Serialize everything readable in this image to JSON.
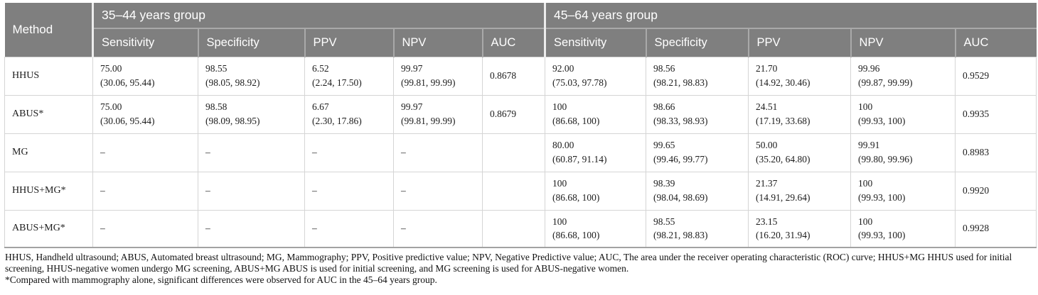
{
  "table": {
    "method_header": "Method",
    "groups": [
      {
        "label": "35–44 years group",
        "columns": [
          "Sensitivity",
          "Specificity",
          "PPV",
          "NPV",
          "AUC"
        ]
      },
      {
        "label": "45–64 years group",
        "columns": [
          "Sensitivity",
          "Specificity",
          "PPV",
          "NPV",
          "AUC"
        ]
      }
    ],
    "rows": [
      {
        "method": "HHUS",
        "cells": [
          [
            "75.00",
            "(30.06, 95.44)"
          ],
          [
            "98.55",
            "(98.05, 98.92)"
          ],
          [
            "6.52",
            "(2.24, 17.50)"
          ],
          [
            "99.97",
            "(99.81, 99.99)"
          ],
          [
            "0.8678",
            ""
          ],
          [
            "92.00",
            "(75.03, 97.78)"
          ],
          [
            "98.56",
            "(98.21, 98.83)"
          ],
          [
            "21.70",
            "(14.92, 30.46)"
          ],
          [
            "99.96",
            "(99.87, 99.99)"
          ],
          [
            "0.9529",
            ""
          ]
        ]
      },
      {
        "method": "ABUS*",
        "cells": [
          [
            "75.00",
            "(30.06, 95.44)"
          ],
          [
            "98.58",
            "(98.09, 98.95)"
          ],
          [
            "6.67",
            "(2.30, 17.86)"
          ],
          [
            "99.97",
            "(99.81, 99.99)"
          ],
          [
            "0.8679",
            ""
          ],
          [
            "100",
            "(86.68, 100)"
          ],
          [
            "98.66",
            "(98.33, 98.93)"
          ],
          [
            "24.51",
            "(17.19, 33.68)"
          ],
          [
            "100",
            "(99.93, 100)"
          ],
          [
            "0.9935",
            ""
          ]
        ]
      },
      {
        "method": "MG",
        "cells": [
          [
            "–",
            ""
          ],
          [
            "–",
            ""
          ],
          [
            "–",
            ""
          ],
          [
            "–",
            ""
          ],
          [
            "",
            ""
          ],
          [
            "80.00",
            "(60.87, 91.14)"
          ],
          [
            "99.65",
            "(99.46, 99.77)"
          ],
          [
            "50.00",
            "(35.20, 64.80)"
          ],
          [
            "99.91",
            "(99.80, 99.96)"
          ],
          [
            "0.8983",
            ""
          ]
        ]
      },
      {
        "method": "HHUS+MG*",
        "cells": [
          [
            "–",
            ""
          ],
          [
            "–",
            ""
          ],
          [
            "–",
            ""
          ],
          [
            "–",
            ""
          ],
          [
            "",
            ""
          ],
          [
            "100",
            "(86.68, 100)"
          ],
          [
            "98.39",
            "(98.04, 98.69)"
          ],
          [
            "21.37",
            "(14.91, 29.64)"
          ],
          [
            "100",
            "(99.93, 100)"
          ],
          [
            "0.9920",
            ""
          ]
        ]
      },
      {
        "method": "ABUS+MG*",
        "cells": [
          [
            "–",
            ""
          ],
          [
            "–",
            ""
          ],
          [
            "–",
            ""
          ],
          [
            "–",
            ""
          ],
          [
            "",
            ""
          ],
          [
            "100",
            "(86.68, 100)"
          ],
          [
            "98.55",
            "(98.21, 98.83)"
          ],
          [
            "23.15",
            "(16.20, 31.94)"
          ],
          [
            "100",
            "(99.93, 100)"
          ],
          [
            "0.9928",
            ""
          ]
        ]
      }
    ],
    "footnotes": [
      "HHUS, Handheld ultrasound; ABUS, Automated breast ultrasound; MG, Mammography; PPV, Positive predictive value; NPV, Negative Predictive value; AUC, The area under the receiver operating characteristic (ROC) curve; HHUS+MG HHUS used for initial screening, HHUS-negative women undergo MG screening, ABUS+MG ABUS is used for initial screening, and MG screening is used for ABUS-negative women.",
      "*Compared with mammography alone, significant differences were observed for AUC in the 45–64 years group."
    ],
    "colors": {
      "header_bg": "#7f7f7f",
      "header_text": "#ffffff",
      "grid_line": "#d5d5d5",
      "bottom_border": "#a2a2a2"
    }
  }
}
